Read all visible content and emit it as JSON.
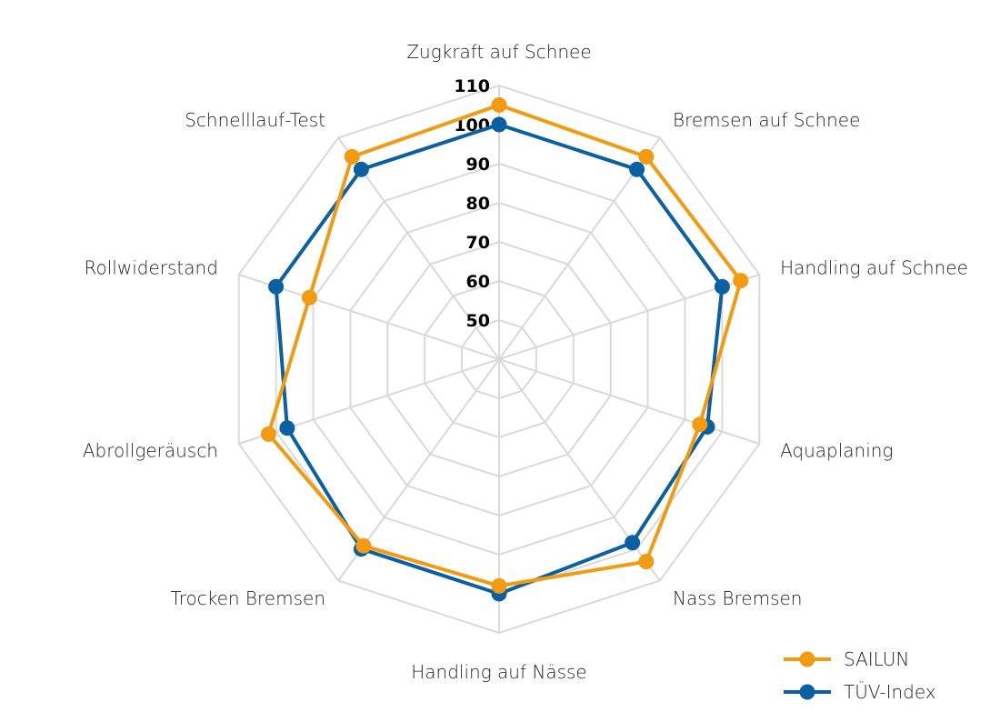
{
  "chart_data": {
    "type": "radar",
    "categories": [
      "Zugkraft auf Schnee",
      "Bremsen auf Schnee",
      "Handling auf Schnee",
      "Aquaplaning",
      "Nass Bremsen",
      "Handling auf Nässe",
      "Trocken Bremsen",
      "Abrollgeräusch",
      "Rollwiderstand",
      "Schnelllauf-Test"
    ],
    "series": [
      {
        "name": "SAILUN",
        "color": "#f29b11",
        "values": [
          105,
          104,
          105,
          94,
          104,
          98,
          99,
          102,
          91,
          104
        ]
      },
      {
        "name": "TÜV-Index",
        "color": "#0a60a3",
        "values": [
          100,
          100,
          100,
          96,
          98,
          100,
          100,
          97,
          100,
          100
        ]
      }
    ],
    "radial_ticks": [
      "50",
      "60",
      "70",
      "80",
      "90",
      "100",
      "110"
    ],
    "tick_values": [
      50,
      60,
      70,
      80,
      90,
      100,
      110
    ],
    "range": [
      40,
      110
    ],
    "grid": true,
    "grid_shape": "decagon",
    "legend_position": "bottom-right"
  }
}
